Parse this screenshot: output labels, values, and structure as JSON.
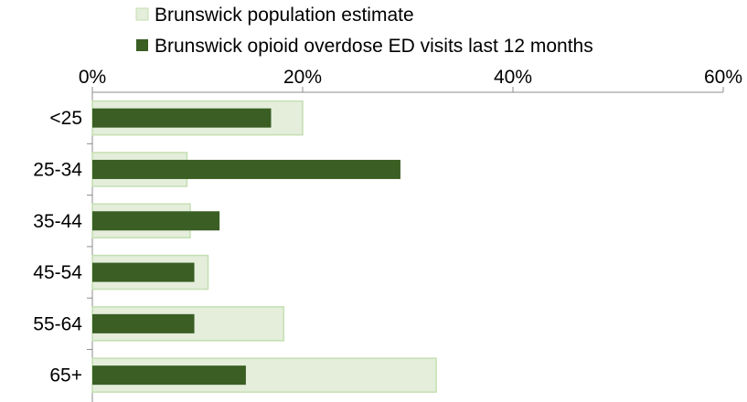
{
  "chart_data": {
    "type": "bar",
    "orientation": "horizontal",
    "categories": [
      "<25",
      "25-34",
      "35-44",
      "45-54",
      "55-64",
      "65+"
    ],
    "series": [
      {
        "name": "Brunswick population estimate",
        "color": "#e4eedb",
        "border_color": "#c4dfb1",
        "values": [
          20,
          9,
          9.3,
          11,
          18.2,
          32.7
        ]
      },
      {
        "name": "Brunswick opioid overdose ED visits last 12 months",
        "color": "#3a5e24",
        "values": [
          17,
          29.3,
          12.1,
          9.7,
          9.7,
          14.6
        ]
      }
    ],
    "xlim": [
      0,
      60
    ],
    "xticks": [
      0,
      20,
      40,
      60
    ],
    "xtick_labels": [
      "0%",
      "20%",
      "40%",
      "60%"
    ],
    "x_axis_position": "top",
    "legend_position": "top",
    "grid": false
  }
}
